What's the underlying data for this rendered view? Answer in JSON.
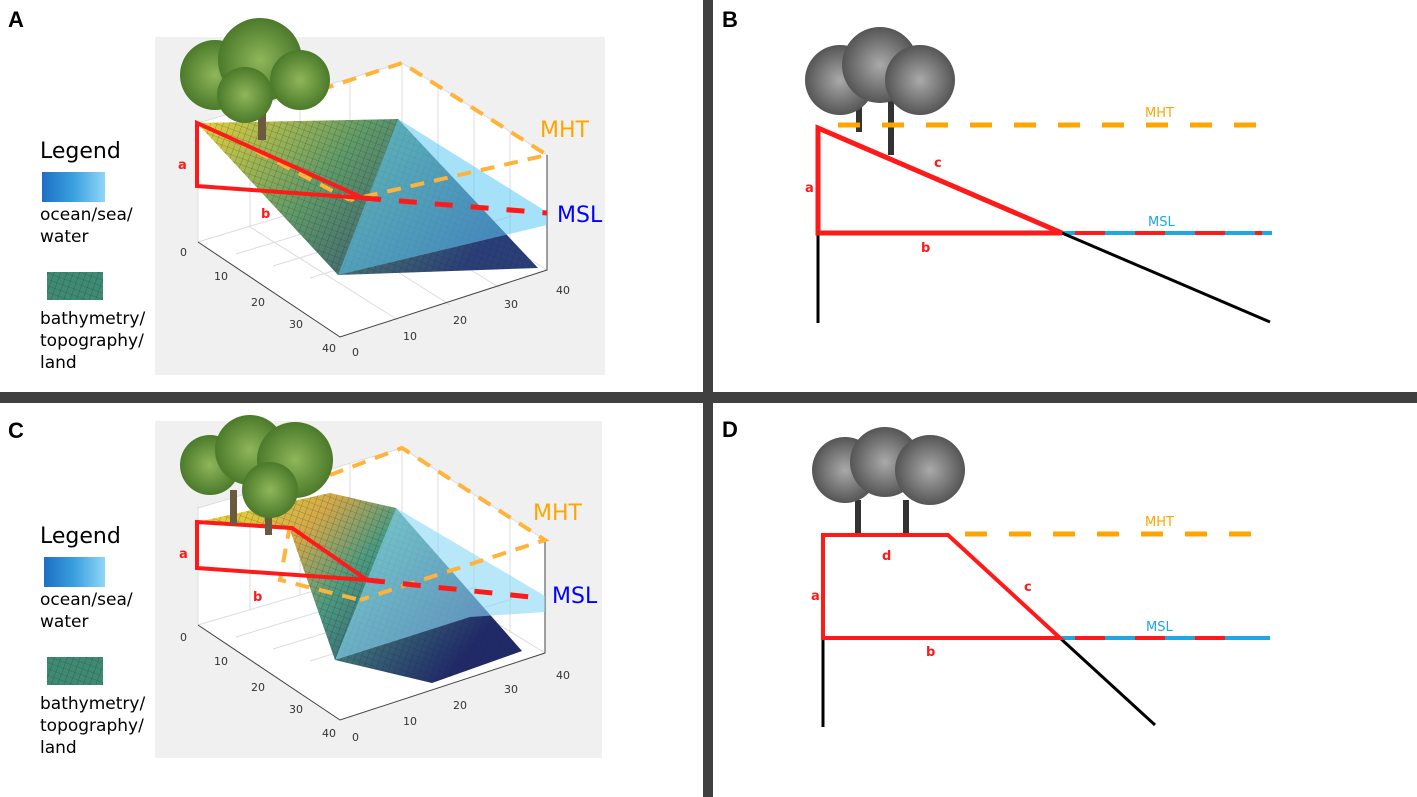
{
  "panels": {
    "A": {
      "label": "A",
      "mht": "MHT",
      "msl": "MSL",
      "a": "a",
      "b": "b"
    },
    "B": {
      "label": "B",
      "mht": "MHT",
      "msl": "MSL",
      "a": "a",
      "b": "b",
      "c": "c"
    },
    "C": {
      "label": "C",
      "mht": "MHT",
      "msl": "MSL",
      "a": "a",
      "b": "b"
    },
    "D": {
      "label": "D",
      "mht": "MHT",
      "msl": "MSL",
      "a": "a",
      "b": "b",
      "c": "c",
      "d": "d"
    }
  },
  "legend": {
    "title": "Legend",
    "water_lines": [
      "ocean/sea/",
      "water"
    ],
    "land_lines": [
      "bathymetry/",
      "topography/",
      "land"
    ]
  },
  "axis_ticks": {
    "left": [
      "0",
      "10",
      "20",
      "30",
      "40"
    ],
    "front": [
      "0",
      "10",
      "20",
      "30",
      "40"
    ]
  },
  "colors": {
    "mht": "#ffa500",
    "msl_label": "#0000ff",
    "msl_line": "#1ea7e1",
    "profile": "#ff1a1a",
    "divider": "#404040"
  }
}
